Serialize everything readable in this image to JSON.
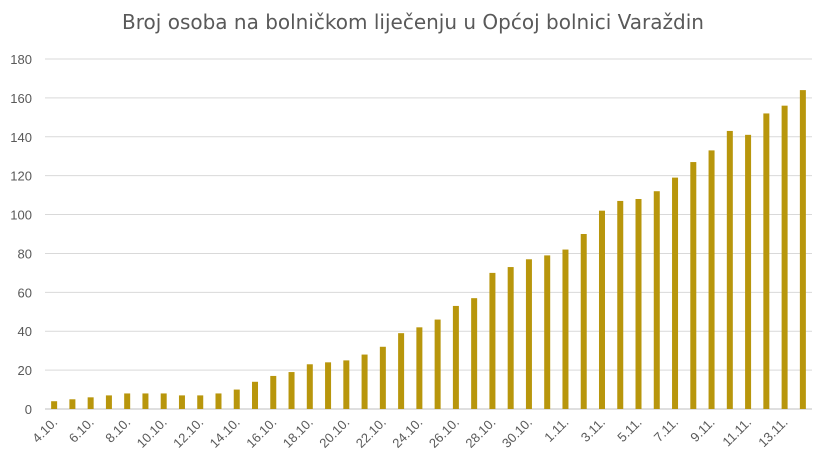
{
  "chart_data": {
    "type": "bar",
    "title": "Broj osoba na bolničkom liječenju u Općoj bolnici Varaždin",
    "xlabel": "",
    "ylabel": "",
    "ylim": [
      0,
      180
    ],
    "yticks": [
      0,
      20,
      40,
      60,
      80,
      100,
      120,
      140,
      160,
      180
    ],
    "grid": true,
    "legend": "none",
    "bar_color": "#B8960C",
    "categories": [
      "4.10.",
      "5.10.",
      "6.10.",
      "7.10.",
      "8.10.",
      "9.10.",
      "10.10.",
      "11.10.",
      "12.10.",
      "13.10.",
      "14.10.",
      "15.10.",
      "16.10.",
      "17.10.",
      "18.10.",
      "19.10.",
      "20.10.",
      "21.10.",
      "22.10.",
      "23.10.",
      "24.10.",
      "25.10.",
      "26.10.",
      "27.10.",
      "28.10.",
      "29.10.",
      "30.10.",
      "31.10.",
      "1.11.",
      "2.11.",
      "3.11.",
      "4.11.",
      "5.11.",
      "6.11.",
      "7.11.",
      "8.11.",
      "9.11.",
      "10.11.",
      "11.11.",
      "12.11.",
      "13.11.",
      "14.11."
    ],
    "x_tick_labels_shown": [
      "4.10.",
      "6.10.",
      "8.10.",
      "10.10.",
      "12.10.",
      "14.10.",
      "16.10.",
      "18.10.",
      "20.10.",
      "22.10.",
      "24.10.",
      "26.10.",
      "28.10.",
      "30.10.",
      "1.11.",
      "3.11.",
      "5.11.",
      "7.11.",
      "9.11.",
      "11.11.",
      "13.11."
    ],
    "values": [
      4,
      5,
      6,
      7,
      8,
      8,
      8,
      7,
      7,
      8,
      10,
      14,
      17,
      19,
      23,
      24,
      25,
      28,
      32,
      39,
      42,
      46,
      53,
      57,
      70,
      73,
      77,
      79,
      82,
      90,
      102,
      107,
      108,
      112,
      119,
      127,
      133,
      143,
      141,
      152,
      156,
      164
    ]
  }
}
